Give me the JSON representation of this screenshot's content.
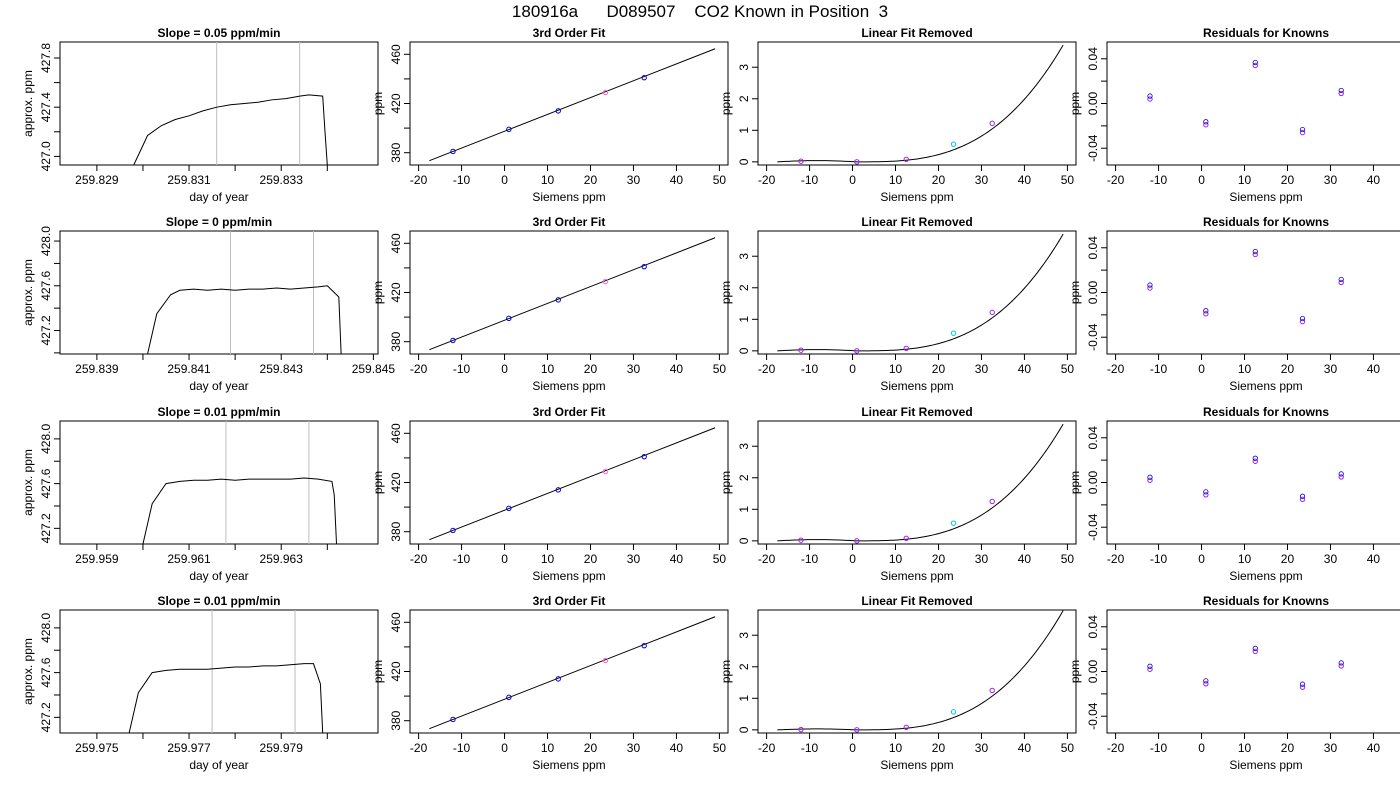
{
  "title": "180916a      D089507    CO2 Known in Position  3",
  "colors": {
    "line": "#000000",
    "grid": "#bebebe",
    "box": "#000000",
    "blue": "#0000cd",
    "purple": "#a020f0",
    "cyan": "#00bfff",
    "pink": "#ff66cc"
  },
  "chart_data": [
    {
      "type": "line",
      "title": "Slope =  0.05  ppm/min",
      "xlabel": "day of year",
      "ylabel": "approx. ppm",
      "xlim": [
        259.8282,
        259.8351
      ],
      "ylim": [
        426.93,
        427.93
      ],
      "xticks": [
        259.829,
        259.83,
        259.831,
        259.832,
        259.833,
        259.834
      ],
      "xtick_labels": [
        "259.829",
        "",
        "259.831",
        "",
        "259.833",
        ""
      ],
      "yticks": [
        427.0,
        427.2,
        427.4,
        427.6,
        427.8
      ],
      "ytick_labels": [
        "427.0",
        "",
        "427.4",
        "",
        "427.8"
      ],
      "vlines": [
        259.8316,
        259.8334
      ],
      "x": [
        259.8298,
        259.8301,
        259.8304,
        259.8307,
        259.831,
        259.8313,
        259.8316,
        259.8319,
        259.8322,
        259.8325,
        259.8328,
        259.8331,
        259.8334,
        259.8336,
        259.8339,
        259.83395,
        259.834
      ],
      "y": [
        426.93,
        427.17,
        427.25,
        427.3,
        427.33,
        427.37,
        427.4,
        427.42,
        427.43,
        427.44,
        427.46,
        427.47,
        427.49,
        427.5,
        427.49,
        427.2,
        426.93
      ]
    },
    {
      "type": "scatter",
      "title": "3rd Order Fit",
      "xlabel": "Siemens ppm",
      "ylabel": "ppm",
      "xlim": [
        -22,
        52
      ],
      "ylim": [
        370,
        470
      ],
      "xticks": [
        -20,
        -10,
        0,
        10,
        20,
        30,
        40,
        50
      ],
      "yticks": [
        380,
        400,
        420,
        440,
        460
      ],
      "ytick_labels": [
        "380",
        "",
        "420",
        "",
        "460"
      ],
      "fit": {
        "type": "line",
        "x": [
          -17.5,
          49
        ],
        "y": [
          373.5,
          464.5
        ]
      },
      "points": [
        {
          "x": -12,
          "y": 381,
          "color": "blue"
        },
        {
          "x": 1,
          "y": 399,
          "color": "blue"
        },
        {
          "x": 12.5,
          "y": 414,
          "color": "blue"
        },
        {
          "x": 23.5,
          "y": 429,
          "color": "pink"
        },
        {
          "x": 32.5,
          "y": 441,
          "color": "blue"
        }
      ]
    },
    {
      "type": "scatter",
      "title": "Linear Fit Removed",
      "xlabel": "Siemens ppm",
      "ylabel": "ppm",
      "xlim": [
        -22,
        52
      ],
      "ylim": [
        -0.1,
        3.8
      ],
      "xticks": [
        -20,
        -10,
        0,
        10,
        20,
        30,
        40,
        50
      ],
      "yticks": [
        0,
        1,
        2,
        3
      ],
      "fit": {
        "type": "cubic",
        "x0": 1,
        "x1": 49,
        "y1": 3.7,
        "bump": 0.04,
        "xstart": -17.5
      },
      "points": [
        {
          "x": -12,
          "y": 0.02,
          "color": "purple"
        },
        {
          "x": 1,
          "y": 0.0,
          "color": "purple"
        },
        {
          "x": 12.5,
          "y": 0.08,
          "color": "purple"
        },
        {
          "x": 23.5,
          "y": 0.56,
          "color": "cyan"
        },
        {
          "x": 32.5,
          "y": 1.22,
          "color": "purple"
        }
      ]
    },
    {
      "type": "scatter",
      "title": "Residuals for Knowns",
      "xlabel": "Siemens ppm",
      "ylabel": "ppm",
      "xlim": [
        -22,
        52
      ],
      "ylim": [
        -0.055,
        0.055
      ],
      "xticks": [
        -20,
        -10,
        0,
        10,
        20,
        30,
        40,
        50
      ],
      "yticks": [
        -0.04,
        -0.02,
        0.0,
        0.02,
        0.04
      ],
      "ytick_labels": [
        "-0.04",
        "",
        "0.00",
        "",
        "0.04"
      ],
      "points": [
        {
          "x": -12,
          "y": 0.004,
          "color": "purple"
        },
        {
          "x": 1,
          "y": -0.019,
          "color": "purple"
        },
        {
          "x": 12.5,
          "y": 0.034,
          "color": "purple"
        },
        {
          "x": 23.5,
          "y": -0.026,
          "color": "purple"
        },
        {
          "x": 32.5,
          "y": 0.009,
          "color": "purple"
        }
      ]
    },
    {
      "type": "line",
      "title": "Slope =  0  ppm/min",
      "xlabel": "day of year",
      "ylabel": "approx. ppm",
      "xlim": [
        259.8382,
        259.8451
      ],
      "ylim": [
        426.99,
        428.09
      ],
      "xticks": [
        259.839,
        259.84,
        259.841,
        259.842,
        259.843,
        259.844,
        259.845
      ],
      "xtick_labels": [
        "259.839",
        "",
        "259.841",
        "",
        "259.843",
        "",
        "259.845"
      ],
      "yticks": [
        427.0,
        427.2,
        427.4,
        427.6,
        427.8,
        428.0
      ],
      "ytick_labels": [
        "",
        "427.2",
        "",
        "427.6",
        "",
        "428.0"
      ],
      "vlines": [
        259.8419,
        259.8437
      ],
      "x": [
        259.8401,
        259.8403,
        259.8406,
        259.8408,
        259.8411,
        259.8414,
        259.8417,
        259.842,
        259.8423,
        259.8426,
        259.8429,
        259.8432,
        259.8435,
        259.8438,
        259.844,
        259.84425,
        259.8443
      ],
      "y": [
        426.99,
        427.35,
        427.52,
        427.56,
        427.57,
        427.56,
        427.57,
        427.56,
        427.57,
        427.57,
        427.58,
        427.57,
        427.58,
        427.59,
        427.6,
        427.5,
        426.99
      ]
    },
    {
      "type": "scatter",
      "title": "3rd Order Fit",
      "xlabel": "Siemens ppm",
      "ylabel": "ppm",
      "xlim": [
        -22,
        52
      ],
      "ylim": [
        370,
        470
      ],
      "xticks": [
        -20,
        -10,
        0,
        10,
        20,
        30,
        40,
        50
      ],
      "yticks": [
        380,
        400,
        420,
        440,
        460
      ],
      "ytick_labels": [
        "380",
        "",
        "420",
        "",
        "460"
      ],
      "fit": {
        "type": "line",
        "x": [
          -17.5,
          49
        ],
        "y": [
          373.5,
          464.5
        ]
      },
      "points": [
        {
          "x": -12,
          "y": 381,
          "color": "blue"
        },
        {
          "x": 1,
          "y": 399,
          "color": "blue"
        },
        {
          "x": 12.5,
          "y": 414,
          "color": "blue"
        },
        {
          "x": 23.5,
          "y": 429,
          "color": "pink"
        },
        {
          "x": 32.5,
          "y": 441,
          "color": "blue"
        }
      ]
    },
    {
      "type": "scatter",
      "title": "Linear Fit Removed",
      "xlabel": "Siemens ppm",
      "ylabel": "ppm",
      "xlim": [
        -22,
        52
      ],
      "ylim": [
        -0.1,
        3.8
      ],
      "xticks": [
        -20,
        -10,
        0,
        10,
        20,
        30,
        40,
        50
      ],
      "yticks": [
        0,
        1,
        2,
        3
      ],
      "fit": {
        "type": "cubic",
        "x0": 1,
        "x1": 49,
        "y1": 3.7,
        "bump": 0.04,
        "xstart": -17.5
      },
      "points": [
        {
          "x": -12,
          "y": 0.02,
          "color": "purple"
        },
        {
          "x": 1,
          "y": 0.0,
          "color": "purple"
        },
        {
          "x": 12.5,
          "y": 0.08,
          "color": "purple"
        },
        {
          "x": 23.5,
          "y": 0.56,
          "color": "cyan"
        },
        {
          "x": 32.5,
          "y": 1.22,
          "color": "purple"
        }
      ]
    },
    {
      "type": "scatter",
      "title": "Residuals for Knowns",
      "xlabel": "Siemens ppm",
      "ylabel": "ppm",
      "xlim": [
        -22,
        52
      ],
      "ylim": [
        -0.055,
        0.055
      ],
      "xticks": [
        -20,
        -10,
        0,
        10,
        20,
        30,
        40,
        50
      ],
      "yticks": [
        -0.04,
        -0.02,
        0.0,
        0.02,
        0.04
      ],
      "ytick_labels": [
        "-0.04",
        "",
        "0.00",
        "",
        "0.04"
      ],
      "points": [
        {
          "x": -12,
          "y": 0.004,
          "color": "purple"
        },
        {
          "x": 1,
          "y": -0.019,
          "color": "purple"
        },
        {
          "x": 12.5,
          "y": 0.034,
          "color": "purple"
        },
        {
          "x": 23.5,
          "y": -0.026,
          "color": "purple"
        },
        {
          "x": 32.5,
          "y": 0.009,
          "color": "purple"
        }
      ]
    },
    {
      "type": "line",
      "title": "Slope =  0.01  ppm/min",
      "xlabel": "day of year",
      "ylabel": "approx. ppm",
      "xlim": [
        259.9582,
        259.9651
      ],
      "ylim": [
        427.06,
        428.16
      ],
      "xticks": [
        259.959,
        259.96,
        259.961,
        259.962,
        259.963,
        259.964
      ],
      "xtick_labels": [
        "259.959",
        "",
        "259.961",
        "",
        "259.963",
        ""
      ],
      "yticks": [
        427.2,
        427.4,
        427.6,
        427.8,
        428.0
      ],
      "ytick_labels": [
        "427.2",
        "",
        "427.6",
        "",
        "428.0"
      ],
      "vlines": [
        259.9618,
        259.9636
      ],
      "x": [
        259.96,
        259.9602,
        259.9605,
        259.9608,
        259.9611,
        259.9614,
        259.9617,
        259.962,
        259.9623,
        259.9626,
        259.9629,
        259.9632,
        259.9635,
        259.9638,
        259.9641,
        259.96415,
        259.9642
      ],
      "y": [
        427.06,
        427.42,
        427.6,
        427.62,
        427.63,
        427.63,
        427.64,
        427.63,
        427.64,
        427.64,
        427.64,
        427.64,
        427.65,
        427.64,
        427.62,
        427.5,
        427.06
      ]
    },
    {
      "type": "scatter",
      "title": "3rd Order Fit",
      "xlabel": "Siemens ppm",
      "ylabel": "ppm",
      "xlim": [
        -22,
        52
      ],
      "ylim": [
        370,
        470
      ],
      "xticks": [
        -20,
        -10,
        0,
        10,
        20,
        30,
        40,
        50
      ],
      "yticks": [
        380,
        400,
        420,
        440,
        460
      ],
      "ytick_labels": [
        "380",
        "",
        "420",
        "",
        "460"
      ],
      "fit": {
        "type": "line",
        "x": [
          -17.5,
          49
        ],
        "y": [
          373.5,
          464.5
        ]
      },
      "points": [
        {
          "x": -12,
          "y": 381,
          "color": "blue"
        },
        {
          "x": 1,
          "y": 399,
          "color": "blue"
        },
        {
          "x": 12.5,
          "y": 414,
          "color": "blue"
        },
        {
          "x": 23.5,
          "y": 429,
          "color": "pink"
        },
        {
          "x": 32.5,
          "y": 441,
          "color": "blue"
        }
      ]
    },
    {
      "type": "scatter",
      "title": "Linear Fit Removed",
      "xlabel": "Siemens ppm",
      "ylabel": "ppm",
      "xlim": [
        -22,
        52
      ],
      "ylim": [
        -0.1,
        3.8
      ],
      "xticks": [
        -20,
        -10,
        0,
        10,
        20,
        30,
        40,
        50
      ],
      "yticks": [
        0,
        1,
        2,
        3
      ],
      "fit": {
        "type": "cubic",
        "x0": 1,
        "x1": 49,
        "y1": 3.7,
        "bump": 0.04,
        "xstart": -17.5
      },
      "points": [
        {
          "x": -12,
          "y": 0.02,
          "color": "purple"
        },
        {
          "x": 1,
          "y": 0.0,
          "color": "purple"
        },
        {
          "x": 12.5,
          "y": 0.08,
          "color": "purple"
        },
        {
          "x": 23.5,
          "y": 0.56,
          "color": "cyan"
        },
        {
          "x": 32.5,
          "y": 1.25,
          "color": "purple"
        }
      ]
    },
    {
      "type": "scatter",
      "title": "Residuals for Knowns",
      "xlabel": "Siemens ppm",
      "ylabel": "ppm",
      "xlim": [
        -22,
        52
      ],
      "ylim": [
        -0.055,
        0.055
      ],
      "xticks": [
        -20,
        -10,
        0,
        10,
        20,
        30,
        40,
        50
      ],
      "yticks": [
        -0.04,
        -0.02,
        0.0,
        0.02,
        0.04
      ],
      "ytick_labels": [
        "-0.04",
        "",
        "0.00",
        "",
        "0.04"
      ],
      "points": [
        {
          "x": -12,
          "y": 0.002,
          "color": "purple"
        },
        {
          "x": 1,
          "y": -0.011,
          "color": "purple"
        },
        {
          "x": 12.5,
          "y": 0.019,
          "color": "purple"
        },
        {
          "x": 23.5,
          "y": -0.015,
          "color": "purple"
        },
        {
          "x": 32.5,
          "y": 0.005,
          "color": "purple"
        }
      ]
    },
    {
      "type": "line",
      "title": "Slope =  0.01  ppm/min",
      "xlabel": "day of year",
      "ylabel": "approx. ppm",
      "xlim": [
        259.9742,
        259.9811
      ],
      "ylim": [
        427.06,
        428.16
      ],
      "xticks": [
        259.975,
        259.976,
        259.977,
        259.978,
        259.979,
        259.98
      ],
      "xtick_labels": [
        "259.975",
        "",
        "259.977",
        "",
        "259.979",
        ""
      ],
      "yticks": [
        427.2,
        427.4,
        427.6,
        427.8,
        428.0
      ],
      "ytick_labels": [
        "427.2",
        "",
        "427.6",
        "",
        "428.0"
      ],
      "vlines": [
        259.9775,
        259.9793
      ],
      "x": [
        259.9757,
        259.9759,
        259.9762,
        259.9765,
        259.9768,
        259.9771,
        259.9774,
        259.9777,
        259.978,
        259.9783,
        259.9786,
        259.9789,
        259.9792,
        259.9795,
        259.9797,
        259.97985,
        259.9799
      ],
      "y": [
        427.06,
        427.42,
        427.6,
        427.62,
        427.63,
        427.63,
        427.63,
        427.64,
        427.65,
        427.65,
        427.66,
        427.66,
        427.67,
        427.68,
        427.68,
        427.5,
        427.06
      ]
    },
    {
      "type": "scatter",
      "title": "3rd Order Fit",
      "xlabel": "Siemens ppm",
      "ylabel": "ppm",
      "xlim": [
        -22,
        52
      ],
      "ylim": [
        370,
        470
      ],
      "xticks": [
        -20,
        -10,
        0,
        10,
        20,
        30,
        40,
        50
      ],
      "yticks": [
        380,
        400,
        420,
        440,
        460
      ],
      "ytick_labels": [
        "380",
        "",
        "420",
        "",
        "460"
      ],
      "fit": {
        "type": "line",
        "x": [
          -17.5,
          49
        ],
        "y": [
          373.5,
          464.5
        ]
      },
      "points": [
        {
          "x": -12,
          "y": 381,
          "color": "blue"
        },
        {
          "x": 1,
          "y": 399,
          "color": "blue"
        },
        {
          "x": 12.5,
          "y": 414,
          "color": "blue"
        },
        {
          "x": 23.5,
          "y": 429,
          "color": "pink"
        },
        {
          "x": 32.5,
          "y": 441,
          "color": "blue"
        }
      ]
    },
    {
      "type": "scatter",
      "title": "Linear Fit Removed",
      "xlabel": "Siemens ppm",
      "ylabel": "ppm",
      "xlim": [
        -22,
        52
      ],
      "ylim": [
        -0.1,
        3.8
      ],
      "xticks": [
        -20,
        -10,
        0,
        10,
        20,
        30,
        40,
        50
      ],
      "yticks": [
        0,
        1,
        2,
        3
      ],
      "fit": {
        "type": "cubic",
        "x0": 1,
        "x1": 49,
        "y1": 3.78,
        "bump": 0.03,
        "xstart": -17.5
      },
      "points": [
        {
          "x": -12,
          "y": 0.01,
          "color": "purple"
        },
        {
          "x": 1,
          "y": 0.0,
          "color": "purple"
        },
        {
          "x": 12.5,
          "y": 0.08,
          "color": "purple"
        },
        {
          "x": 23.5,
          "y": 0.57,
          "color": "cyan"
        },
        {
          "x": 32.5,
          "y": 1.25,
          "color": "purple"
        }
      ]
    },
    {
      "type": "scatter",
      "title": "Residuals for Knowns",
      "xlabel": "Siemens ppm",
      "ylabel": "ppm",
      "xlim": [
        -22,
        52
      ],
      "ylim": [
        -0.055,
        0.055
      ],
      "xticks": [
        -20,
        -10,
        0,
        10,
        20,
        30,
        40,
        50
      ],
      "yticks": [
        -0.04,
        -0.02,
        0.0,
        0.02,
        0.04
      ],
      "ytick_labels": [
        "-0.04",
        "",
        "0.00",
        "",
        "0.04"
      ],
      "points": [
        {
          "x": -12,
          "y": 0.002,
          "color": "purple"
        },
        {
          "x": 1,
          "y": -0.011,
          "color": "purple"
        },
        {
          "x": 12.5,
          "y": 0.018,
          "color": "purple"
        },
        {
          "x": 23.5,
          "y": -0.014,
          "color": "purple"
        },
        {
          "x": 32.5,
          "y": 0.005,
          "color": "purple"
        }
      ]
    }
  ]
}
